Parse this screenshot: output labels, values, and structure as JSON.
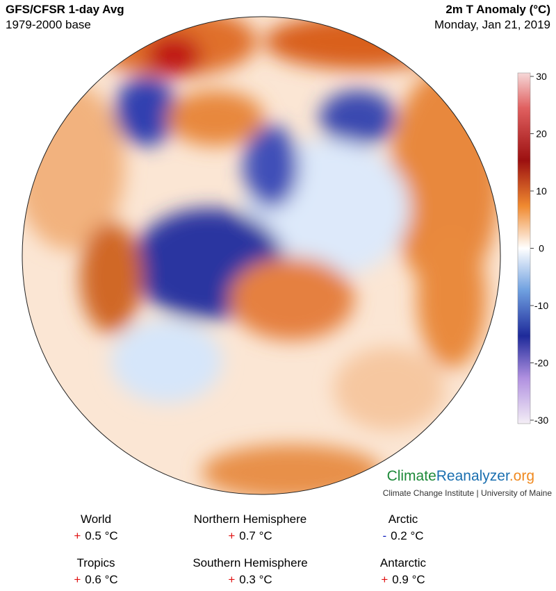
{
  "header": {
    "title": "GFS/CFSR 1-day Avg",
    "subtitle": "1979-2000 base",
    "variable": "2m T Anomaly (°C)",
    "date": "Monday, Jan 21, 2019"
  },
  "colorbar": {
    "lim": [
      -30,
      30
    ],
    "ticks": [
      30,
      20,
      10,
      0,
      -10,
      -20,
      -30
    ]
  },
  "branding": {
    "logo": [
      "Climate",
      "Reanalyzer",
      ".org"
    ],
    "credit": "Climate Change Institute | University of Maine"
  },
  "stats": [
    {
      "region": "World",
      "sign": "+",
      "value": "0.5 °C"
    },
    {
      "region": "Northern Hemisphere",
      "sign": "+",
      "value": "0.7 °C"
    },
    {
      "region": "Arctic",
      "sign": "-",
      "value": "0.2 °C"
    },
    {
      "region": "Tropics",
      "sign": "+",
      "value": "0.6 °C"
    },
    {
      "region": "Southern Hemisphere",
      "sign": "+",
      "value": "0.3 °C"
    },
    {
      "region": "Antarctic",
      "sign": "+",
      "value": "0.9 °C"
    }
  ]
}
